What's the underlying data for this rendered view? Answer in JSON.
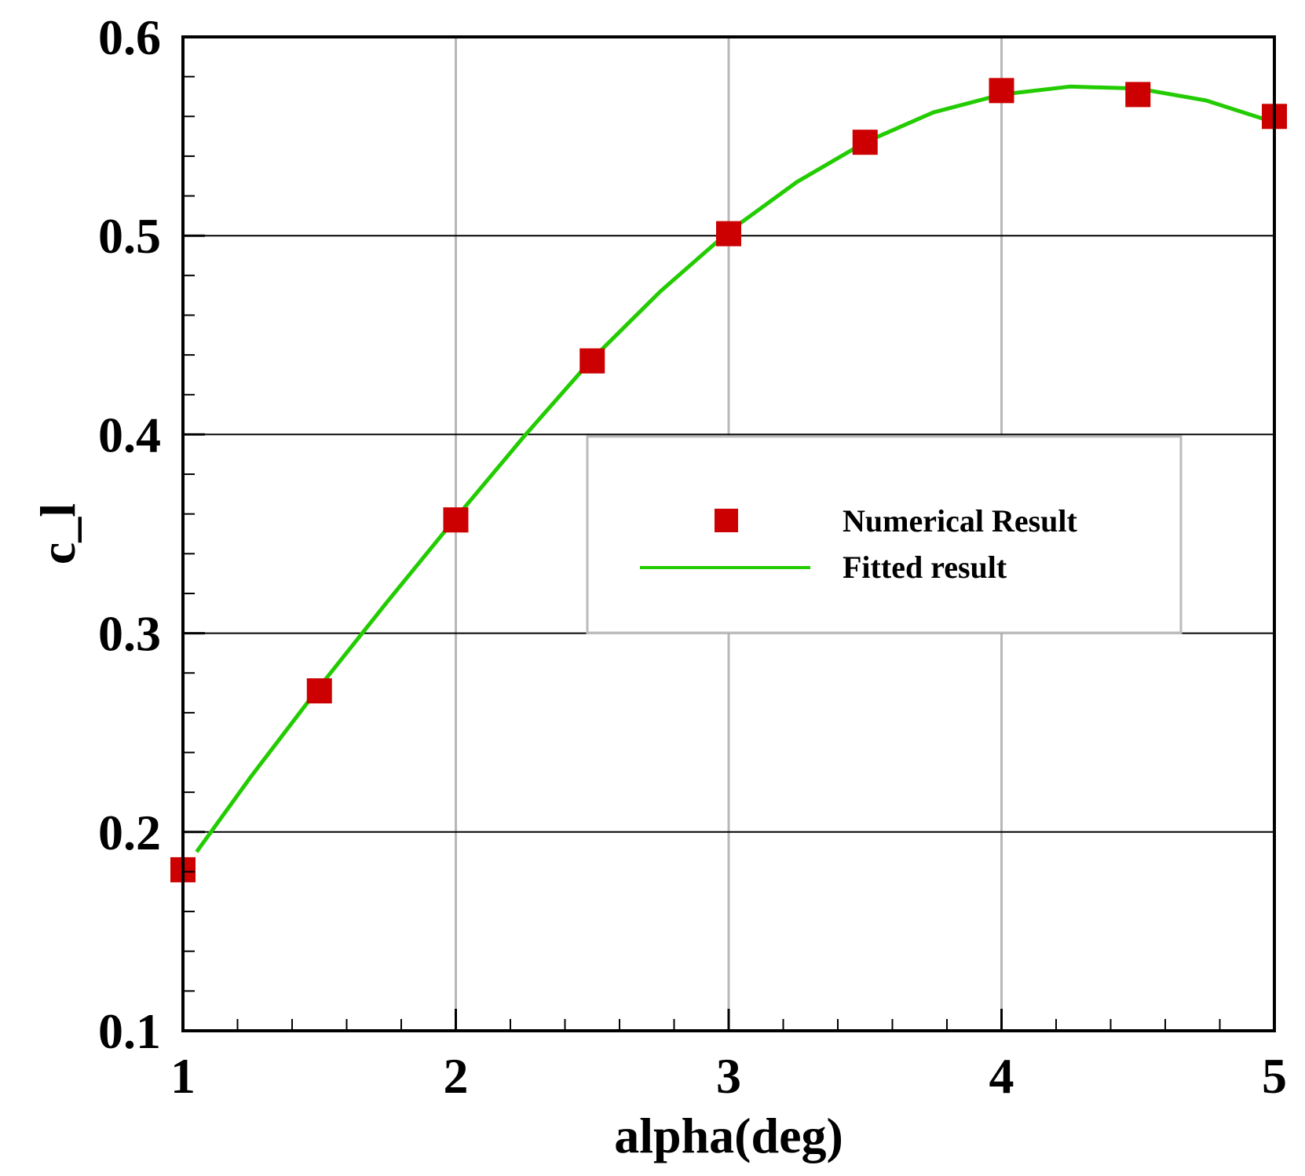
{
  "chart_data": {
    "type": "scatter",
    "xlabel": "alpha(deg)",
    "ylabel": "c_l",
    "xlim": [
      1,
      5
    ],
    "ylim": [
      0.1,
      0.6
    ],
    "x_ticks": [
      1,
      2,
      3,
      4,
      5
    ],
    "y_ticks": [
      0.1,
      0.2,
      0.3,
      0.4,
      0.5,
      0.6
    ],
    "x_tick_labels": [
      "1",
      "2",
      "3",
      "4",
      "5"
    ],
    "y_tick_labels": [
      "0.1",
      "0.2",
      "0.3",
      "0.4",
      "0.5",
      "0.6"
    ],
    "grid": true,
    "legend": {
      "placement": "center-right",
      "entries": [
        {
          "label": "Numerical Result",
          "marker": "square",
          "color": "#cc0000"
        },
        {
          "label": "Fitted result",
          "marker": "line",
          "color": "#22cc00"
        }
      ]
    },
    "series": [
      {
        "name": "Numerical Result",
        "kind": "scatter",
        "color": "#cc0000",
        "x": [
          1.0,
          1.5,
          2.0,
          2.5,
          3.0,
          3.5,
          4.0,
          4.5,
          5.0
        ],
        "y": [
          0.181,
          0.271,
          0.357,
          0.437,
          0.501,
          0.547,
          0.573,
          0.571,
          0.56
        ]
      },
      {
        "name": "Fitted result",
        "kind": "line",
        "color": "#22cc00",
        "x": [
          1.05,
          1.25,
          1.5,
          1.75,
          2.0,
          2.25,
          2.5,
          2.75,
          3.0,
          3.25,
          3.5,
          3.75,
          4.0,
          4.25,
          4.5,
          4.75,
          5.0
        ],
        "y": [
          0.19,
          0.228,
          0.273,
          0.316,
          0.358,
          0.399,
          0.438,
          0.472,
          0.502,
          0.527,
          0.547,
          0.562,
          0.571,
          0.575,
          0.574,
          0.568,
          0.557
        ]
      }
    ]
  }
}
